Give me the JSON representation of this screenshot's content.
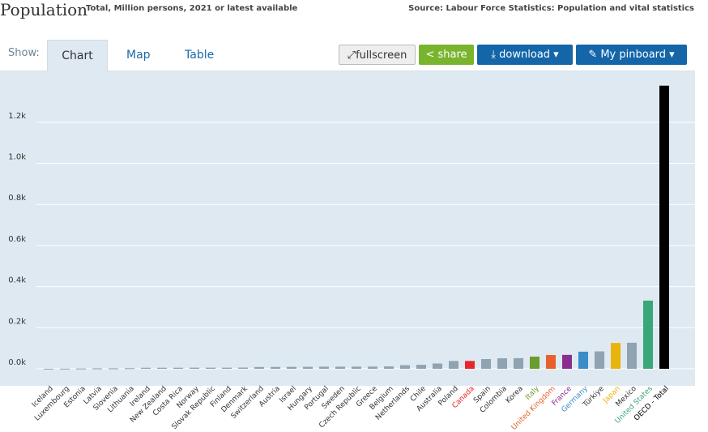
{
  "header": {
    "title": "Population",
    "subtitle": "Total, Million persons, 2021 or latest available",
    "source": "Source: Labour Force Statistics: Population and vital statistics"
  },
  "tabs": {
    "label": "Show:",
    "items": [
      "Chart",
      "Map",
      "Table"
    ]
  },
  "buttons": [
    "fullscreen",
    "share",
    "download ▾",
    "My pinboard ▾"
  ],
  "chart_data": {
    "type": "bar",
    "categories": [
      "Iceland",
      "Luxembourg",
      "Estonia",
      "Latvia",
      "Slovenia",
      "Lithuania",
      "Ireland",
      "New Zealand",
      "Costa Rica",
      "Norway",
      "Slovak Republic",
      "Finland",
      "Denmark",
      "Switzerland",
      "Austria",
      "Israel",
      "Hungary",
      "Portugal",
      "Sweden",
      "Czech Republic",
      "Greece",
      "Belgium",
      "Netherlands",
      "Chile",
      "Australia",
      "Poland",
      "Canada",
      "Spain",
      "Colombia",
      "Korea",
      "Italy",
      "United Kingdom",
      "France",
      "Germany",
      "Türkiye",
      "Japan",
      "Mexico",
      "United States",
      "OECD - Total"
    ],
    "values": [
      0.37,
      0.64,
      1.33,
      1.89,
      2.11,
      2.8,
      5.0,
      5.1,
      5.15,
      5.4,
      5.45,
      5.5,
      5.85,
      8.7,
      8.95,
      9.4,
      9.7,
      10.3,
      10.4,
      10.5,
      10.6,
      11.6,
      17.5,
      19.5,
      25.7,
      37.8,
      38.2,
      47.3,
      51.0,
      51.7,
      59.2,
      67.0,
      67.7,
      83.2,
      84.7,
      125.7,
      126.7,
      331.9,
      1378
    ],
    "color": "#8fa3b1",
    "colors": [
      "#8fa3b1",
      "#8fa3b1",
      "#8fa3b1",
      "#8fa3b1",
      "#8fa3b1",
      "#8fa3b1",
      "#8fa3b1",
      "#8fa3b1",
      "#8fa3b1",
      "#8fa3b1",
      "#8fa3b1",
      "#8fa3b1",
      "#8fa3b1",
      "#8fa3b1",
      "#8fa3b1",
      "#8fa3b1",
      "#8fa3b1",
      "#8fa3b1",
      "#8fa3b1",
      "#8fa3b1",
      "#8fa3b1",
      "#8fa3b1",
      "#8fa3b1",
      "#8fa3b1",
      "#8fa3b1",
      "#8fa3b1",
      "#e8262b",
      "#8fa3b1",
      "#8fa3b1",
      "#8fa3b1",
      "#6a9d2b",
      "#e8602c",
      "#8b2f8f",
      "#3a8dc9",
      "#8fa3b1",
      "#e9b40a",
      "#8fa3b1",
      "#3aa77a",
      "#000000"
    ],
    "ylim": [
      0,
      1440
    ],
    "yticks": [
      {
        "value": 0,
        "label": "0.0k"
      },
      {
        "value": 200,
        "label": "0.2k"
      },
      {
        "value": 400,
        "label": "0.4k"
      },
      {
        "value": 600,
        "label": "0.6k"
      },
      {
        "value": 800,
        "label": "0.8k"
      },
      {
        "value": 1000,
        "label": "1.0k"
      },
      {
        "value": 1200,
        "label": "1.2k"
      }
    ],
    "grid": true
  }
}
